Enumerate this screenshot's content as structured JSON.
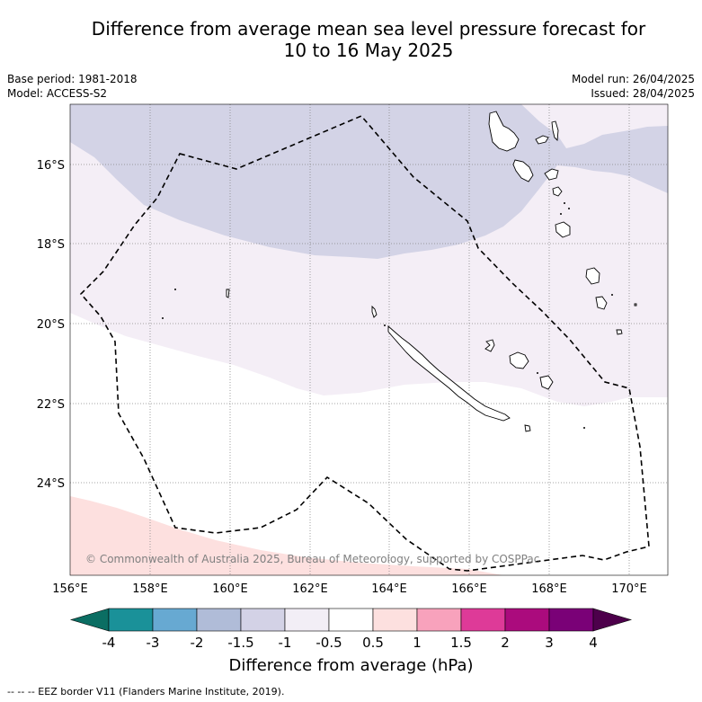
{
  "title_line1": "Difference from average mean sea level pressure forecast for",
  "title_line2": "10 to 16 May 2025",
  "meta_left": {
    "base_period": "Base period: 1981-2018",
    "model": "Model: ACCESS-S2"
  },
  "meta_right": {
    "model_run": "Model run: 26/04/2025",
    "issued": "Issued: 28/04/2025"
  },
  "copyright": "© Commonwealth of Australia 2025, Bureau of Meteorology, supported by COSPPac",
  "lon_ticks": [
    "156°E",
    "158°E",
    "160°E",
    "162°E",
    "164°E",
    "166°E",
    "168°E",
    "170°E"
  ],
  "lat_ticks": [
    "16°S",
    "18°S",
    "20°S",
    "22°S",
    "24°S"
  ],
  "colorbar": {
    "title": "Difference from average (hPa)",
    "labels": [
      "-4",
      "-3",
      "-2",
      "-1.5",
      "-1",
      "-0.5",
      "0.5",
      "1",
      "1.5",
      "2",
      "3",
      "4"
    ],
    "colors": [
      "#0b6e63",
      "#1a9199",
      "#67a9d2",
      "#b0bcd8",
      "#d3d2e6",
      "#f2eef6",
      "#ffffff",
      "#fde0df",
      "#f8a2bc",
      "#de3a98",
      "#ab0b7d",
      "#7a0177",
      "#4d004b"
    ]
  },
  "footer": "--  --  -- EEZ border V11 (Flanders Marine Institute, 2019)."
}
